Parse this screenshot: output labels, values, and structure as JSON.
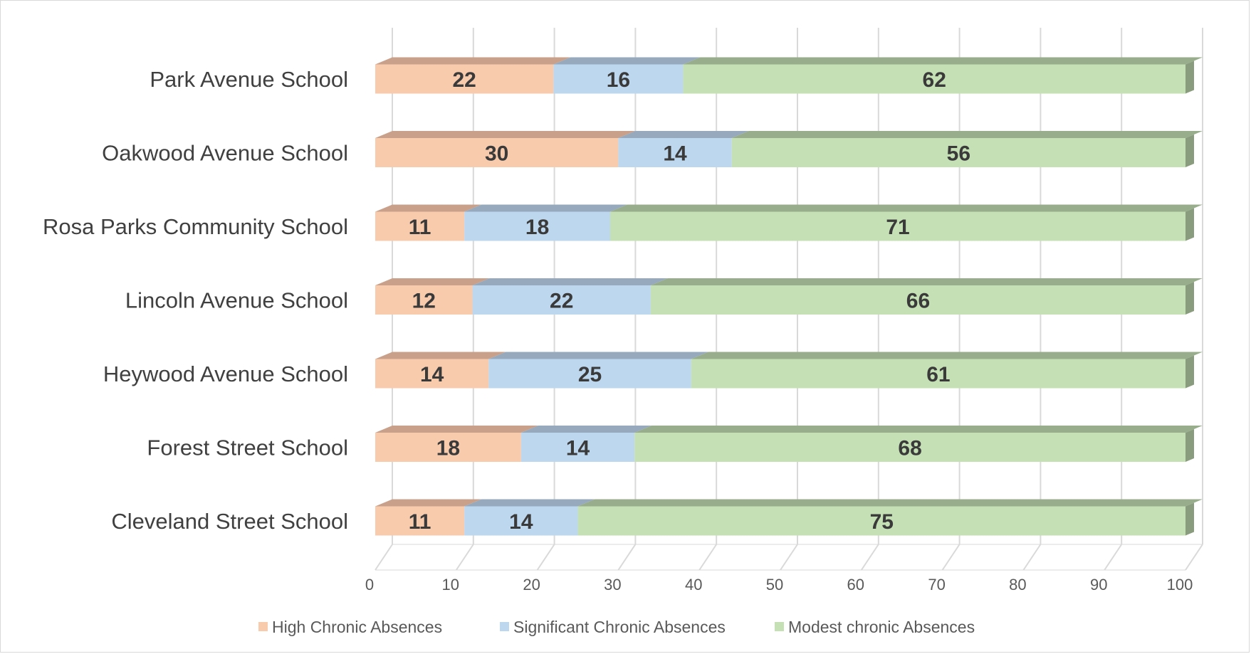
{
  "chart_data": {
    "type": "bar",
    "orientation": "horizontal",
    "stacked": true,
    "style": "3d",
    "categories": [
      "Park Avenue School",
      "Oakwood Avenue School",
      "Rosa Parks Community School",
      "Lincoln Avenue School",
      "Heywood Avenue School",
      "Forest Street School",
      "Cleveland Street School"
    ],
    "series": [
      {
        "name": "High Chronic Absences",
        "color": "#f8cbad",
        "top_color": "#c9a08a",
        "values": [
          22,
          30,
          11,
          12,
          14,
          18,
          11
        ]
      },
      {
        "name": "Significant Chronic Absences",
        "color": "#bdd7ee",
        "top_color": "#97aabd",
        "values": [
          16,
          14,
          18,
          22,
          25,
          14,
          14
        ]
      },
      {
        "name": "Modest chronic Absences",
        "color": "#c5e0b4",
        "top_color": "#98ad8b",
        "end_color": "#8a9c7e",
        "values": [
          62,
          56,
          71,
          66,
          61,
          68,
          75
        ]
      }
    ],
    "x_ticks": [
      "0",
      "10",
      "20",
      "30",
      "40",
      "50",
      "60",
      "70",
      "80",
      "90",
      "100"
    ],
    "xlim": [
      0,
      100
    ],
    "grid": true,
    "legend_position": "bottom",
    "title": "",
    "xlabel": "",
    "ylabel": ""
  }
}
